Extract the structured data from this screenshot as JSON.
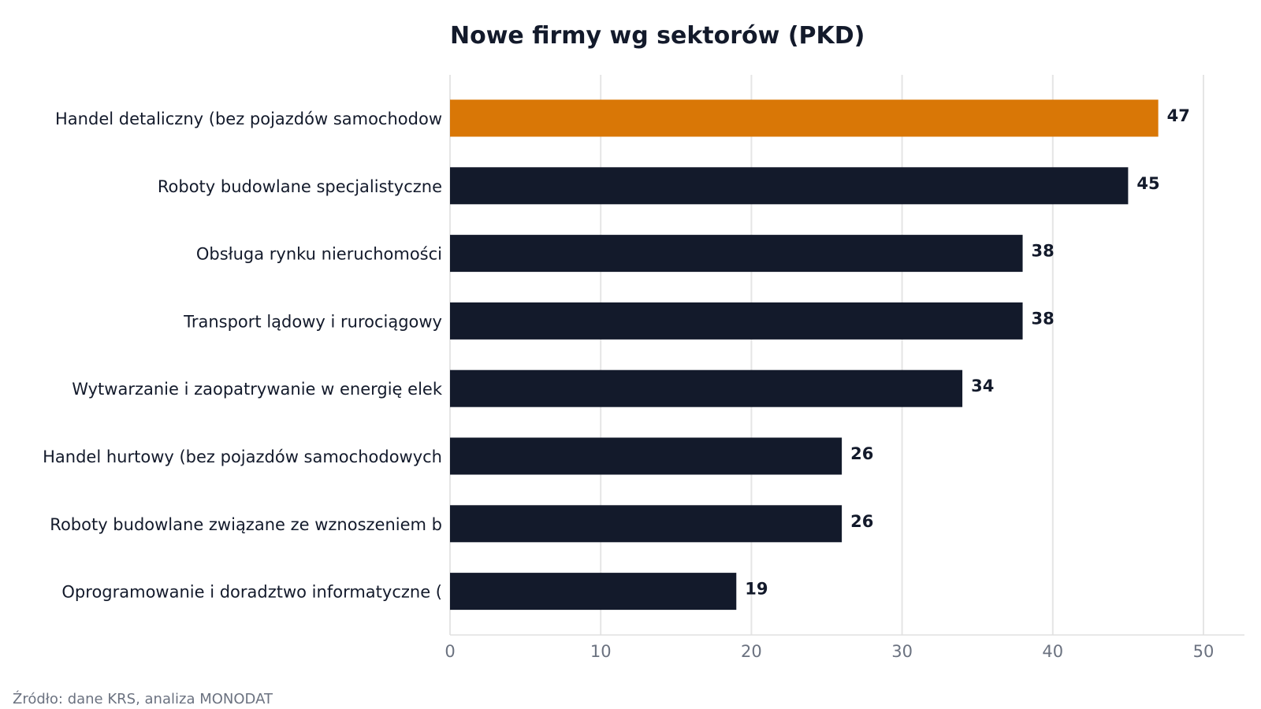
{
  "chart_data": {
    "type": "bar",
    "orientation": "horizontal",
    "title": "Nowe firmy wg sektorów (PKD)",
    "categories": [
      "Handel detaliczny (bez pojazdów samochodow",
      "Roboty budowlane specjalistyczne",
      "Obsługa rynku nieruchomości",
      "Transport lądowy i rurociągowy",
      "Wytwarzanie i zaopatrywanie w energię elek",
      "Handel hurtowy (bez pojazdów samochodowych",
      "Roboty budowlane związane ze wznoszeniem b",
      "Oprogramowanie i doradztwo informatyczne ("
    ],
    "values": [
      47,
      45,
      38,
      38,
      34,
      26,
      26,
      19
    ],
    "data_labels": [
      "47",
      "45",
      "38",
      "38",
      "34",
      "26",
      "26",
      "19"
    ],
    "xlim": [
      0,
      52.5
    ],
    "xticks": [
      0,
      10,
      20,
      30,
      40,
      50
    ],
    "xtick_labels": [
      "0",
      "10",
      "20",
      "30",
      "40",
      "50"
    ],
    "grid": "vertical",
    "colors": {
      "highlight": "#d97706",
      "bar": "#131a2b",
      "grid": "#e5e5e5",
      "axis": "#e0e0e0"
    },
    "highlight_index": 0
  },
  "source_note": "Źródło: dane KRS, analiza MONODAT"
}
